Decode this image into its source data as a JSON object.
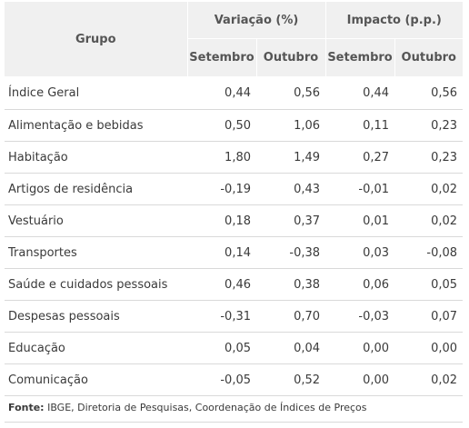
{
  "table": {
    "header": {
      "grupo": "Grupo",
      "variacao": "Variação (%)",
      "impacto": "Impacto (p.p.)",
      "sub": [
        "Setembro",
        "Outubro",
        "Setembro",
        "Outubro"
      ]
    },
    "rows": [
      {
        "grupo": "Índice Geral",
        "var_set": "0,44",
        "var_out": "0,56",
        "imp_set": "0,44",
        "imp_out": "0,56"
      },
      {
        "grupo": "Alimentação e bebidas",
        "var_set": "0,50",
        "var_out": "1,06",
        "imp_set": "0,11",
        "imp_out": "0,23"
      },
      {
        "grupo": "Habitação",
        "var_set": "1,80",
        "var_out": "1,49",
        "imp_set": "0,27",
        "imp_out": "0,23"
      },
      {
        "grupo": "Artigos de residência",
        "var_set": "-0,19",
        "var_out": "0,43",
        "imp_set": "-0,01",
        "imp_out": "0,02"
      },
      {
        "grupo": "Vestuário",
        "var_set": "0,18",
        "var_out": "0,37",
        "imp_set": "0,01",
        "imp_out": "0,02"
      },
      {
        "grupo": "Transportes",
        "var_set": "0,14",
        "var_out": "-0,38",
        "imp_set": "0,03",
        "imp_out": "-0,08"
      },
      {
        "grupo": "Saúde e cuidados pessoais",
        "var_set": "0,46",
        "var_out": "0,38",
        "imp_set": "0,06",
        "imp_out": "0,05"
      },
      {
        "grupo": "Despesas pessoais",
        "var_set": "-0,31",
        "var_out": "0,70",
        "imp_set": "-0,03",
        "imp_out": "0,07"
      },
      {
        "grupo": "Educação",
        "var_set": "0,05",
        "var_out": "0,04",
        "imp_set": "0,00",
        "imp_out": "0,00"
      },
      {
        "grupo": "Comunicação",
        "var_set": "-0,05",
        "var_out": "0,52",
        "imp_set": "0,00",
        "imp_out": "0,02"
      }
    ]
  },
  "footer": {
    "label": "Fonte:",
    "text": " IBGE, Diretoria de Pesquisas, Coordenação de Índices de Preços"
  }
}
